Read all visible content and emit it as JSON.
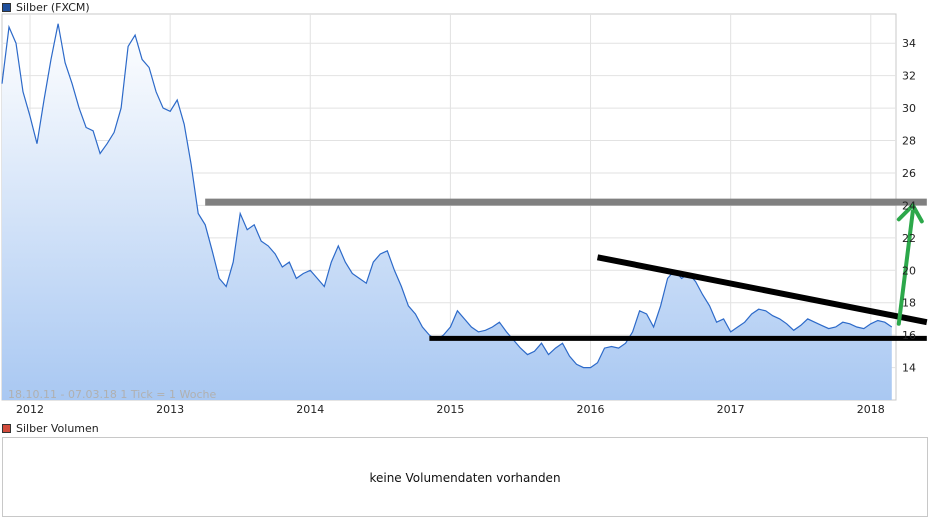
{
  "legend_price": {
    "label": "Silber (FXCM)",
    "color": "#1f4f9c"
  },
  "legend_volume": {
    "label": "Silber Volumen",
    "color": "#d24b3c"
  },
  "info_text": "18.10.11 - 07.03.18    1 Tick = 1 Woche",
  "volume_message": "keine Volumendaten vorhanden",
  "colors": {
    "line": "#2d6ac9",
    "fill_top": "#ffffff",
    "fill_bottom": "#a9c8f2",
    "grid": "#e2e2e2",
    "resistance": "#808080",
    "support": "#000000",
    "arrow": "#2ca84a"
  },
  "chart_data": {
    "type": "area",
    "title": "Silber (FXCM)",
    "xlabel": "",
    "ylabel": "",
    "x_tick_labels": [
      "2012",
      "2013",
      "2014",
      "2015",
      "2016",
      "2017",
      "2018"
    ],
    "y_tick_labels": [
      "14",
      "16",
      "18",
      "20",
      "22",
      "24",
      "26",
      "28",
      "30",
      "32",
      "34"
    ],
    "ylim": [
      12.0,
      35.8
    ],
    "xlim": [
      2011.8,
      2018.18
    ],
    "grid": true,
    "series": [
      {
        "name": "Silber (FXCM)",
        "x": [
          2011.8,
          2011.85,
          2011.9,
          2011.95,
          2012.0,
          2012.05,
          2012.1,
          2012.15,
          2012.2,
          2012.25,
          2012.3,
          2012.35,
          2012.4,
          2012.45,
          2012.5,
          2012.55,
          2012.6,
          2012.65,
          2012.7,
          2012.75,
          2012.8,
          2012.85,
          2012.9,
          2012.95,
          2013.0,
          2013.05,
          2013.1,
          2013.15,
          2013.2,
          2013.25,
          2013.3,
          2013.35,
          2013.4,
          2013.45,
          2013.5,
          2013.55,
          2013.6,
          2013.65,
          2013.7,
          2013.75,
          2013.8,
          2013.85,
          2013.9,
          2013.95,
          2014.0,
          2014.05,
          2014.1,
          2014.15,
          2014.2,
          2014.25,
          2014.3,
          2014.35,
          2014.4,
          2014.45,
          2014.5,
          2014.55,
          2014.6,
          2014.65,
          2014.7,
          2014.75,
          2014.8,
          2014.85,
          2014.9,
          2014.95,
          2015.0,
          2015.05,
          2015.1,
          2015.15,
          2015.2,
          2015.25,
          2015.3,
          2015.35,
          2015.4,
          2015.45,
          2015.5,
          2015.55,
          2015.6,
          2015.65,
          2015.7,
          2015.75,
          2015.8,
          2015.85,
          2015.9,
          2015.95,
          2016.0,
          2016.05,
          2016.1,
          2016.15,
          2016.2,
          2016.25,
          2016.3,
          2016.35,
          2016.4,
          2016.45,
          2016.5,
          2016.55,
          2016.6,
          2016.65,
          2016.7,
          2016.75,
          2016.8,
          2016.85,
          2016.9,
          2016.95,
          2017.0,
          2017.05,
          2017.1,
          2017.15,
          2017.2,
          2017.25,
          2017.3,
          2017.35,
          2017.4,
          2017.45,
          2017.5,
          2017.55,
          2017.6,
          2017.65,
          2017.7,
          2017.75,
          2017.8,
          2017.85,
          2017.9,
          2017.95,
          2018.0,
          2018.05,
          2018.1,
          2018.15
        ],
        "values": [
          31.5,
          35.0,
          34.0,
          31.0,
          29.5,
          27.8,
          30.5,
          33.0,
          35.2,
          32.8,
          31.5,
          30.0,
          28.8,
          28.6,
          27.2,
          27.8,
          28.5,
          30.0,
          33.8,
          34.5,
          33.0,
          32.5,
          31.0,
          30.0,
          29.8,
          30.5,
          29.0,
          26.5,
          23.5,
          22.8,
          21.2,
          19.5,
          19.0,
          20.5,
          23.5,
          22.5,
          22.8,
          21.8,
          21.5,
          21.0,
          20.2,
          20.5,
          19.5,
          19.8,
          20.0,
          19.5,
          19.0,
          20.5,
          21.5,
          20.5,
          19.8,
          19.5,
          19.2,
          20.5,
          21.0,
          21.2,
          20.0,
          19.0,
          17.8,
          17.3,
          16.5,
          16.0,
          15.7,
          16.0,
          16.5,
          17.5,
          17.0,
          16.5,
          16.2,
          16.3,
          16.5,
          16.8,
          16.2,
          15.7,
          15.2,
          14.8,
          15.0,
          15.5,
          14.8,
          15.2,
          15.5,
          14.7,
          14.2,
          14.0,
          14.0,
          14.3,
          15.2,
          15.3,
          15.2,
          15.5,
          16.2,
          17.5,
          17.3,
          16.5,
          17.8,
          19.5,
          20.0,
          19.5,
          19.8,
          19.3,
          18.5,
          17.8,
          16.8,
          17.0,
          16.2,
          16.5,
          16.8,
          17.3,
          17.6,
          17.5,
          17.2,
          17.0,
          16.7,
          16.3,
          16.6,
          17.0,
          16.8,
          16.6,
          16.4,
          16.5,
          16.8,
          16.7,
          16.5,
          16.4,
          16.7,
          16.9,
          16.8,
          16.5
        ]
      }
    ],
    "annotations": [
      {
        "type": "horizontal_line",
        "value": 24.2,
        "x_start": 2013.25,
        "x_end": 2018.4,
        "color": "#808080"
      },
      {
        "type": "horizontal_line",
        "value": 15.8,
        "x_start": 2014.85,
        "x_end": 2018.4,
        "color": "#000000"
      },
      {
        "type": "trend_line",
        "from": [
          2016.05,
          20.8
        ],
        "to": [
          2018.4,
          16.8
        ],
        "color": "#000000"
      },
      {
        "type": "arrow",
        "from": [
          2018.2,
          16.7
        ],
        "to": [
          2018.3,
          24.0
        ],
        "color": "#2ca84a"
      }
    ]
  }
}
